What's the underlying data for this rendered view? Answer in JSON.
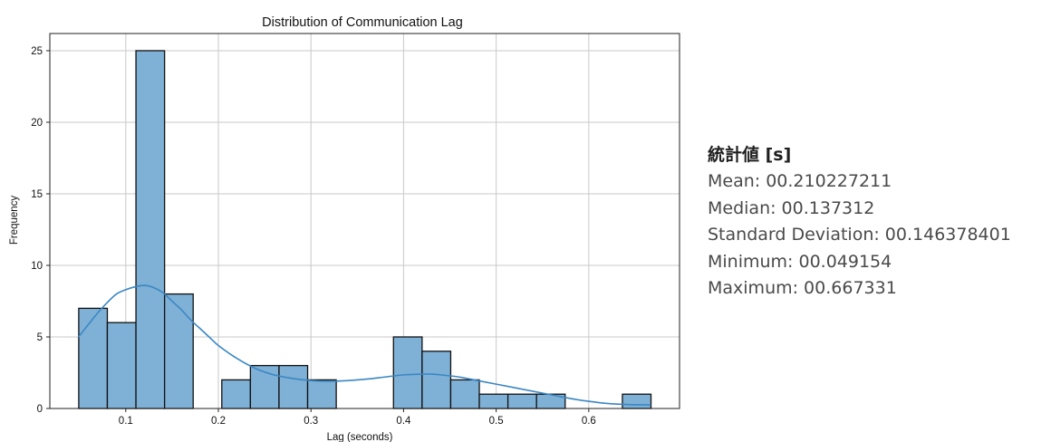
{
  "chart_data": {
    "type": "bar",
    "title": "Distribution of Communication Lag",
    "xlabel": "Lag (seconds)",
    "ylabel": "Frequency",
    "xlim": [
      0.018,
      0.698
    ],
    "ylim": [
      0,
      26.2
    ],
    "xticks": [
      0.1,
      0.2,
      0.3,
      0.4,
      0.5,
      0.6
    ],
    "xtick_labels": [
      "0.1",
      "0.2",
      "0.3",
      "0.4",
      "0.5",
      "0.6"
    ],
    "yticks": [
      0,
      5,
      10,
      15,
      20,
      25
    ],
    "ytick_labels": [
      "0",
      "5",
      "10",
      "15",
      "20",
      "25"
    ],
    "grid": true,
    "bar_color": "#7fb0d6",
    "bar_edge_color": "#111111",
    "kde_color": "#3a87c4",
    "bins": [
      {
        "x0": 0.0492,
        "x1": 0.0801,
        "count": 7
      },
      {
        "x0": 0.0801,
        "x1": 0.111,
        "count": 6
      },
      {
        "x0": 0.111,
        "x1": 0.1419,
        "count": 25
      },
      {
        "x0": 0.1419,
        "x1": 0.1728,
        "count": 8
      },
      {
        "x0": 0.1728,
        "x1": 0.2037,
        "count": 0
      },
      {
        "x0": 0.2037,
        "x1": 0.2346,
        "count": 2
      },
      {
        "x0": 0.2346,
        "x1": 0.2655,
        "count": 3
      },
      {
        "x0": 0.2655,
        "x1": 0.2964,
        "count": 3
      },
      {
        "x0": 0.2964,
        "x1": 0.3273,
        "count": 2
      },
      {
        "x0": 0.3273,
        "x1": 0.3582,
        "count": 0
      },
      {
        "x0": 0.3582,
        "x1": 0.3891,
        "count": 0
      },
      {
        "x0": 0.3891,
        "x1": 0.42,
        "count": 5
      },
      {
        "x0": 0.42,
        "x1": 0.4509,
        "count": 4
      },
      {
        "x0": 0.4509,
        "x1": 0.4818,
        "count": 2
      },
      {
        "x0": 0.4818,
        "x1": 0.5127,
        "count": 1
      },
      {
        "x0": 0.5127,
        "x1": 0.5436,
        "count": 1
      },
      {
        "x0": 0.5436,
        "x1": 0.5745,
        "count": 1
      },
      {
        "x0": 0.5745,
        "x1": 0.6054,
        "count": 0
      },
      {
        "x0": 0.6054,
        "x1": 0.6363,
        "count": 0
      },
      {
        "x0": 0.6363,
        "x1": 0.6672,
        "count": 1
      }
    ],
    "kde": {
      "x": [
        0.049,
        0.06,
        0.07,
        0.08,
        0.09,
        0.1,
        0.11,
        0.12,
        0.13,
        0.14,
        0.15,
        0.16,
        0.17,
        0.18,
        0.19,
        0.2,
        0.22,
        0.24,
        0.26,
        0.28,
        0.3,
        0.32,
        0.34,
        0.36,
        0.38,
        0.4,
        0.42,
        0.43,
        0.44,
        0.46,
        0.48,
        0.5,
        0.52,
        0.54,
        0.56,
        0.58,
        0.6,
        0.62,
        0.64,
        0.667
      ],
      "y": [
        5.0,
        5.9,
        6.7,
        7.4,
        8.0,
        8.3,
        8.5,
        8.6,
        8.45,
        8.1,
        7.5,
        6.9,
        6.2,
        5.6,
        5.0,
        4.4,
        3.5,
        2.8,
        2.35,
        2.1,
        1.95,
        1.9,
        1.95,
        2.05,
        2.2,
        2.35,
        2.4,
        2.4,
        2.35,
        2.2,
        1.95,
        1.7,
        1.45,
        1.2,
        0.95,
        0.7,
        0.5,
        0.35,
        0.28,
        0.25
      ]
    }
  },
  "stats": {
    "heading": "統計値 [s]",
    "mean": "Mean: 00.210227211",
    "median": "Median: 00.137312",
    "std": "Standard Deviation: 00.146378401",
    "min": "Minimum: 00.049154",
    "max": "Maximum: 00.667331"
  }
}
